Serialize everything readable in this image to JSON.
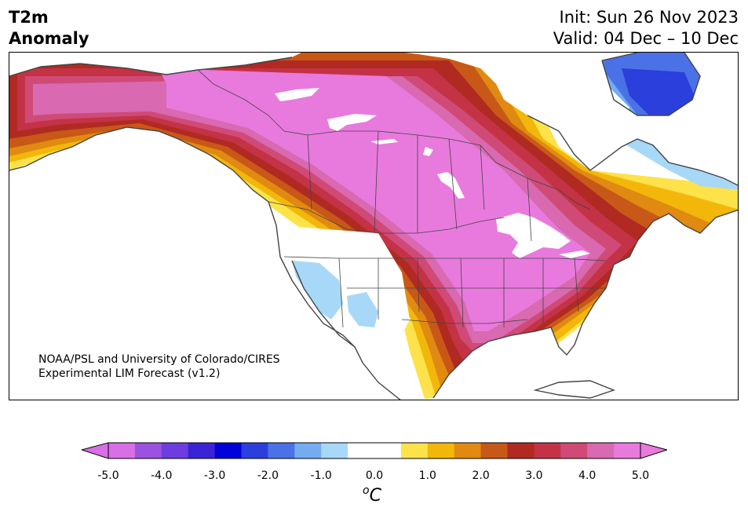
{
  "header": {
    "title_line1": "T2m",
    "title_line2": "Anomaly",
    "init_text": "Init: Sun 26 Nov 2023",
    "valid_text": "Valid: 04 Dec – 10 Dec"
  },
  "credit": {
    "line1": "NOAA/PSL and University of Colorado/CIRES",
    "line2": "Experimental LIM Forecast (v1.2)"
  },
  "colorbar": {
    "unit_base": "C",
    "unit_sup": "o",
    "ticks": [
      "-5.0",
      "-4.0",
      "-3.0",
      "-2.0",
      "-1.0",
      "0.0",
      "1.0",
      "2.0",
      "3.0",
      "4.0",
      "5.0"
    ],
    "colors": [
      "#d86fe6",
      "#9b52e0",
      "#6d3de0",
      "#3a24d6",
      "#0000d8",
      "#2a3fdc",
      "#4a72e6",
      "#74acf2",
      "#a8d8f8",
      "#ffffff",
      "#ffffff",
      "#fde24a",
      "#f2b70a",
      "#e08a12",
      "#c85818",
      "#b02a22",
      "#c43246",
      "#cf4a76",
      "#d969b0",
      "#e87add"
    ],
    "under_color": "#d86fe6",
    "over_color": "#e87add"
  },
  "map": {
    "region": "North America",
    "palette": {
      "magenta": "#e87add",
      "pink": "#d969b0",
      "rose": "#cf4a76",
      "crimson": "#c43246",
      "darkred": "#b02a22",
      "rust": "#c85818",
      "orange": "#e08a12",
      "gold": "#f2b70a",
      "yellow": "#fde24a",
      "lightblue": "#a8d8f8",
      "blue1": "#74acf2",
      "blue2": "#4a72e6",
      "blue3": "#2a3fdc",
      "land_line": "#444444"
    }
  }
}
